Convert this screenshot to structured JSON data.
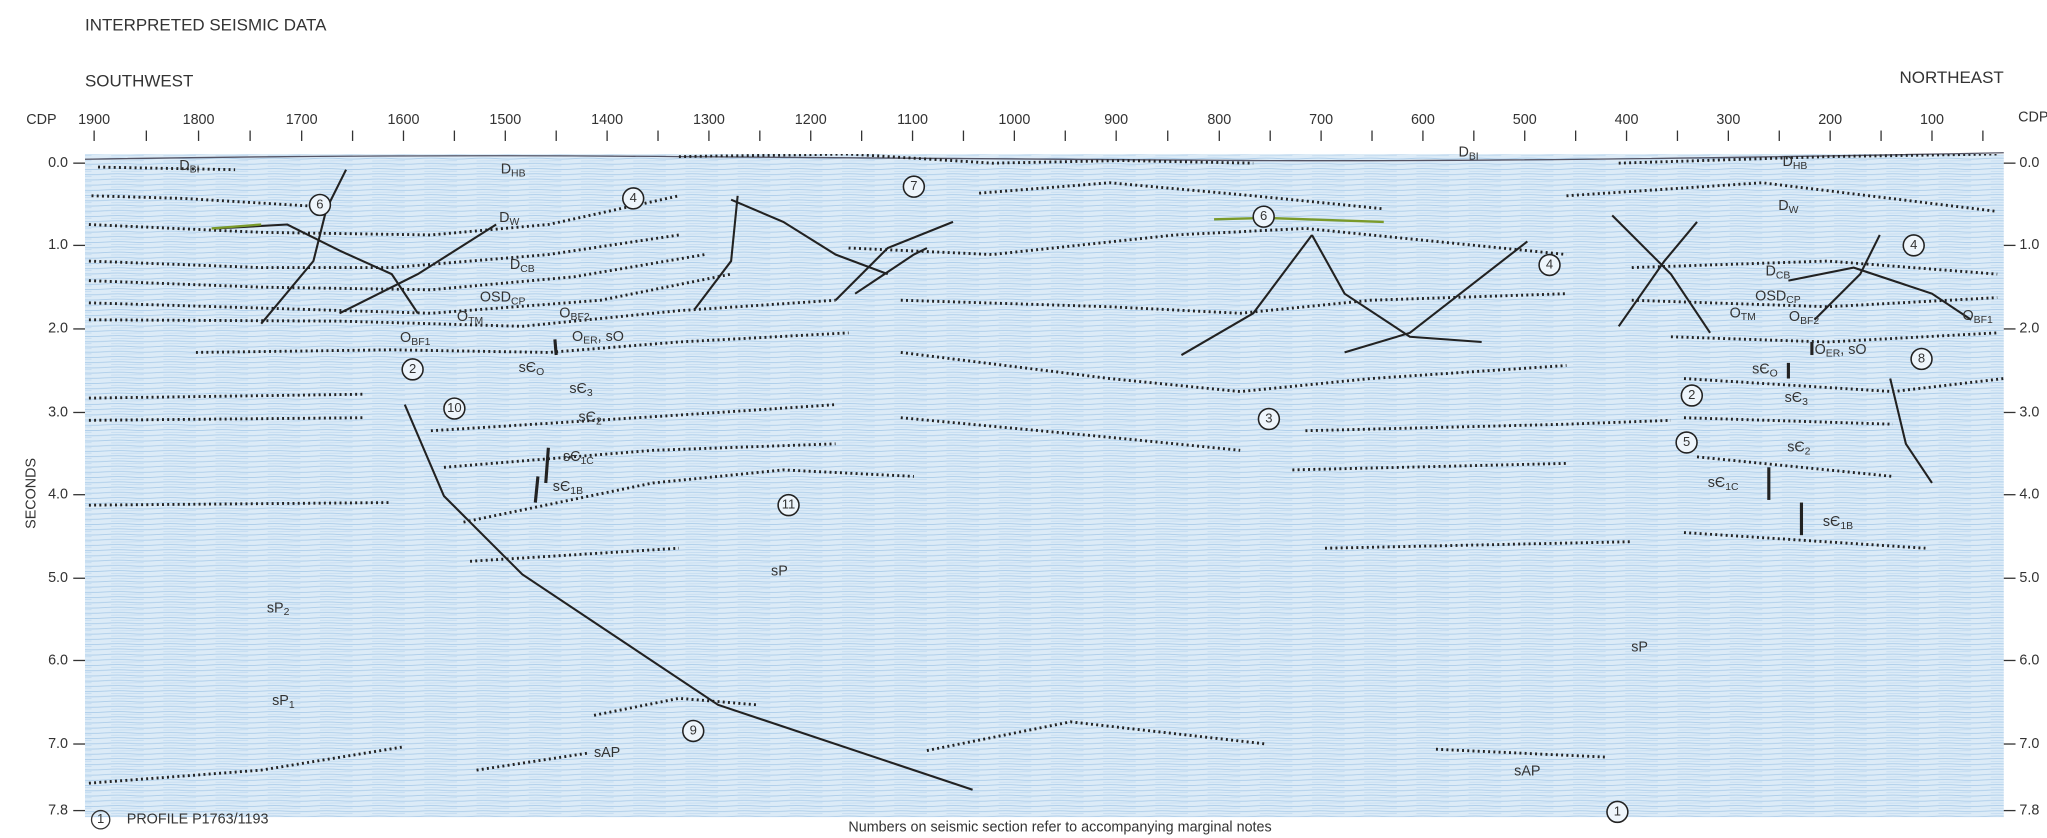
{
  "title": "INTERPRETED SEISMIC DATA",
  "direction": {
    "left": "SOUTHWEST",
    "right": "NORTHEAST"
  },
  "cdp_axis": {
    "label_left": "CDP",
    "label_right": "CDP",
    "ticks": [
      "1900",
      "1800",
      "1700",
      "1600",
      "1500",
      "1400",
      "1300",
      "1200",
      "1100",
      "1000",
      "900",
      "800",
      "700",
      "600",
      "500",
      "400",
      "300",
      "200",
      "100"
    ]
  },
  "time_axis": {
    "label": "SECONDS",
    "ticks": [
      "0.0",
      "1.0",
      "2.0",
      "3.0",
      "4.0",
      "5.0",
      "6.0",
      "7.0",
      "7.8"
    ]
  },
  "units": [
    {
      "base": "D",
      "sub": "BI"
    },
    {
      "base": "D",
      "sub": "HB"
    },
    {
      "base": "D",
      "sub": "W"
    },
    {
      "base": "D",
      "sub": "CB"
    },
    {
      "base": "OSD",
      "sub": "CP"
    },
    {
      "base": "O",
      "sub": "TM"
    },
    {
      "base": "O",
      "sub": "BF2"
    },
    {
      "base": "O",
      "sub": "BF1"
    },
    {
      "base": "O",
      "sub": "ER",
      "tail": ", sO"
    },
    {
      "base": "sЄ",
      "sub": "O"
    },
    {
      "base": "sЄ",
      "sub": "3"
    },
    {
      "base": "sЄ",
      "sub": "2"
    },
    {
      "base": "sЄ",
      "sub": "1C"
    },
    {
      "base": "sЄ",
      "sub": "1B"
    },
    {
      "base": "sP",
      "sub": "2"
    },
    {
      "base": "sP",
      "sub": "1"
    },
    {
      "base": "sAP"
    },
    {
      "base": "sP"
    },
    {
      "base": "D",
      "sub": "BI"
    },
    {
      "base": "D",
      "sub": "HB"
    },
    {
      "base": "D",
      "sub": "W"
    },
    {
      "base": "D",
      "sub": "CB"
    },
    {
      "base": "OSD",
      "sub": "CP"
    },
    {
      "base": "O",
      "sub": "TM"
    },
    {
      "base": "O",
      "sub": "BF2"
    },
    {
      "base": "O",
      "sub": "BF1"
    },
    {
      "base": "O",
      "sub": "ER",
      "tail": ", sO"
    },
    {
      "base": "sЄ",
      "sub": "O"
    },
    {
      "base": "sЄ",
      "sub": "3"
    },
    {
      "base": "sЄ",
      "sub": "2"
    },
    {
      "base": "sЄ",
      "sub": "1C"
    },
    {
      "base": "sЄ",
      "sub": "1B"
    },
    {
      "base": "sP"
    },
    {
      "base": "sAP"
    }
  ],
  "notes": [
    "6",
    "4",
    "7",
    "2",
    "10",
    "11",
    "9",
    "3",
    "6",
    "4",
    "2",
    "5",
    "8",
    "4",
    "1"
  ],
  "footer": {
    "note_number": "1",
    "profile": "PROFILE P1763/1193",
    "caption": "Numbers on seismic section refer to accompanying marginal notes"
  }
}
